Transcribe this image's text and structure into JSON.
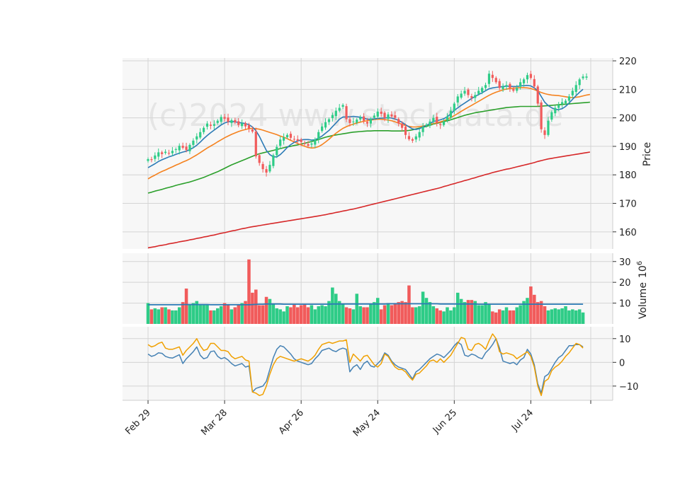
{
  "watermark": "(c)2024 www.stockdata.de",
  "chart_data": {
    "type": "candlestick-with-volume-and-oscillator",
    "x_ticks": [
      "Feb 29",
      "Mar 28",
      "Apr 26",
      "May 24",
      "Jun 25",
      "Jul 24"
    ],
    "colors": {
      "up": "#2ecc87",
      "down": "#f15b5b",
      "ma_blue": "#2c7bb6",
      "ma_orange": "#f5821f",
      "ma_green": "#2ca02c",
      "ma_red": "#d62728",
      "osc_blue": "#4682b4",
      "osc_orange": "#f0a000",
      "volume_ma": "#2c7bb6"
    },
    "price_panel": {
      "ylabel": "Price",
      "ylim": [
        154,
        221
      ],
      "yticks": [
        160,
        170,
        180,
        190,
        200,
        210,
        220
      ],
      "close": [
        185.5,
        185.2,
        186.8,
        187.9,
        187.3,
        188.1,
        187.6,
        188.4,
        189.0,
        190.2,
        189.5,
        188.7,
        190.5,
        192.0,
        193.5,
        195.0,
        196.5,
        198.0,
        197.2,
        197.8,
        199.0,
        200.3,
        199.7,
        198.6,
        199.2,
        198.4,
        197.5,
        198.1,
        197.0,
        196.3,
        195.2,
        186.5,
        184.2,
        182.0,
        180.8,
        183.5,
        186.9,
        189.8,
        192.4,
        193.2,
        194.0,
        193.0,
        192.5,
        192.0,
        191.5,
        190.8,
        190.2,
        191.0,
        192.5,
        195.0,
        197.0,
        198.5,
        199.5,
        201.0,
        202.5,
        203.5,
        204.5,
        199.5,
        198.2,
        198.7,
        199.4,
        200.1,
        199.0,
        198.0,
        199.6,
        200.8,
        202.2,
        201.4,
        200.0,
        201.2,
        200.5,
        200.0,
        198.0,
        196.5,
        194.0,
        192.5,
        192.0,
        193.5,
        195.0,
        196.8,
        197.6,
        198.7,
        200.0,
        198.2,
        197.5,
        198.8,
        200.5,
        202.5,
        205.0,
        207.5,
        208.5,
        209.5,
        208.0,
        207.0,
        208.0,
        209.5,
        210.5,
        211.5,
        215.5,
        214.0,
        212.5,
        210.5,
        211.0,
        211.5,
        210.5,
        209.5,
        210.5,
        212.5,
        213.5,
        215.0,
        214.0,
        211.0,
        205.0,
        196.0,
        194.0,
        199.0,
        202.0,
        203.5,
        204.5,
        205.5,
        206.0,
        207.5,
        209.5,
        211.5,
        213.5,
        214.5,
        214.5
      ],
      "ma_short": [
        182.5,
        183.2,
        183.9,
        184.7,
        185.3,
        185.8,
        186.3,
        186.7,
        187.2,
        187.6,
        188.0,
        188.3,
        188.9,
        189.5,
        190.4,
        191.5,
        192.7,
        193.8,
        194.8,
        195.7,
        196.6,
        197.5,
        198.2,
        198.6,
        198.8,
        198.6,
        198.4,
        198.2,
        198.0,
        197.6,
        196.8,
        195.5,
        193.5,
        191.0,
        188.6,
        187.1,
        186.3,
        186.3,
        187.1,
        188.3,
        189.6,
        190.6,
        191.4,
        191.9,
        192.3,
        192.4,
        192.4,
        192.2,
        192.3,
        192.9,
        193.6,
        194.6,
        195.6,
        196.9,
        198.2,
        199.5,
        200.3,
        200.3,
        200.4,
        200.5,
        200.4,
        200.2,
        199.9,
        199.5,
        199.5,
        199.6,
        199.8,
        199.9,
        199.9,
        200.1,
        199.9,
        199.6,
        199.1,
        198.4,
        197.6,
        196.8,
        196.1,
        195.9,
        196.2,
        196.8,
        197.3,
        198.0,
        198.7,
        199.0,
        199.3,
        199.7,
        200.4,
        201.4,
        202.6,
        203.5,
        204.4,
        205.2,
        206.0,
        206.8,
        207.5,
        208.2,
        208.8,
        209.5,
        210.2,
        210.5,
        210.7,
        210.8,
        211.0,
        211.1,
        211.1,
        211.0,
        211.0,
        211.2,
        211.3,
        211.4,
        211.2,
        210.5,
        209.5,
        207.5,
        205.5,
        204.3,
        203.5,
        203.0,
        202.9,
        203.2,
        204.0,
        205.2,
        206.5,
        207.8,
        209.0,
        210.0
      ],
      "ma_mid": [
        178.6,
        179.3,
        179.9,
        180.6,
        181.2,
        181.7,
        182.3,
        182.8,
        183.4,
        183.9,
        184.5,
        185.0,
        185.6,
        186.3,
        187.0,
        187.8,
        188.6,
        189.4,
        190.1,
        190.8,
        191.6,
        192.3,
        193.0,
        193.6,
        194.2,
        194.7,
        195.2,
        195.6,
        195.9,
        196.2,
        196.3,
        196.2,
        196.0,
        195.7,
        195.3,
        194.9,
        194.5,
        194.1,
        193.6,
        193.2,
        192.7,
        192.1,
        191.6,
        191.0,
        190.5,
        190.0,
        189.6,
        189.4,
        189.5,
        189.9,
        190.6,
        191.5,
        192.5,
        193.6,
        194.6,
        195.5,
        196.3,
        196.9,
        197.4,
        197.8,
        198.2,
        198.5,
        198.8,
        199.0,
        199.2,
        199.4,
        199.5,
        199.5,
        199.4,
        199.2,
        199.0,
        198.6,
        198.2,
        197.7,
        197.3,
        197.0,
        196.8,
        196.8,
        196.9,
        197.1,
        197.4,
        197.7,
        198.0,
        198.3,
        198.6,
        199.0,
        199.5,
        200.1,
        200.8,
        201.5,
        202.3,
        203.0,
        203.7,
        204.4,
        205.1,
        205.8,
        206.5,
        207.2,
        207.9,
        208.5,
        209.0,
        209.4,
        209.8,
        210.1,
        210.3,
        210.4,
        210.5,
        210.6,
        210.6,
        210.5,
        210.3,
        209.9,
        209.4,
        208.9,
        208.5,
        208.2,
        208.0,
        207.9,
        207.8,
        207.6,
        207.4,
        207.2,
        207.1,
        207.2,
        207.4,
        207.7,
        208.0,
        208.2
      ],
      "ma_long": [
        173.6,
        173.9,
        174.3,
        174.6,
        174.9,
        175.3,
        175.6,
        175.9,
        176.3,
        176.6,
        176.9,
        177.2,
        177.5,
        177.9,
        178.3,
        178.7,
        179.1,
        179.6,
        180.1,
        180.6,
        181.1,
        181.7,
        182.3,
        182.9,
        183.5,
        184.0,
        184.5,
        185.0,
        185.5,
        186.0,
        186.5,
        187.0,
        187.4,
        187.7,
        188.0,
        188.3,
        188.6,
        188.9,
        189.2,
        189.5,
        189.8,
        190.0,
        190.3,
        190.5,
        190.8,
        191.1,
        191.4,
        191.7,
        192.0,
        192.4,
        192.8,
        193.2,
        193.5,
        193.8,
        194.0,
        194.2,
        194.4,
        194.6,
        194.8,
        195.0,
        195.1,
        195.2,
        195.3,
        195.4,
        195.4,
        195.5,
        195.5,
        195.5,
        195.5,
        195.5,
        195.4,
        195.4,
        195.4,
        195.4,
        195.5,
        195.6,
        195.8,
        196.1,
        196.4,
        196.7,
        197.0,
        197.4,
        197.8,
        198.1,
        198.4,
        198.7,
        199.0,
        199.3,
        199.7,
        200.1,
        200.5,
        200.9,
        201.2,
        201.5,
        201.8,
        202.0,
        202.2,
        202.4,
        202.6,
        202.8,
        203.0,
        203.2,
        203.4,
        203.6,
        203.7,
        203.8,
        203.9,
        204.0,
        204.0,
        204.0,
        204.0,
        204.0,
        204.0,
        204.1,
        204.2,
        204.3,
        204.4,
        204.5,
        204.6,
        204.7,
        204.8,
        204.9,
        205.0,
        205.1,
        205.2,
        205.3,
        205.4,
        205.5
      ],
      "ma_200": [
        154.4,
        154.6,
        154.8,
        155.1,
        155.3,
        155.5,
        155.8,
        156.0,
        156.2,
        156.5,
        156.7,
        156.9,
        157.2,
        157.4,
        157.7,
        157.9,
        158.2,
        158.4,
        158.7,
        158.9,
        159.2,
        159.5,
        159.7,
        160.0,
        160.3,
        160.5,
        160.8,
        161.1,
        161.3,
        161.6,
        161.8,
        162.0,
        162.2,
        162.4,
        162.6,
        162.8,
        163.0,
        163.2,
        163.4,
        163.6,
        163.8,
        164.0,
        164.2,
        164.4,
        164.6,
        164.8,
        165.0,
        165.2,
        165.4,
        165.6,
        165.8,
        166.0,
        166.3,
        166.5,
        166.8,
        167.0,
        167.3,
        167.5,
        167.8,
        168.0,
        168.3,
        168.6,
        168.9,
        169.2,
        169.5,
        169.8,
        170.1,
        170.4,
        170.7,
        171.0,
        171.3,
        171.6,
        171.9,
        172.2,
        172.5,
        172.8,
        173.1,
        173.4,
        173.7,
        174.0,
        174.3,
        174.6,
        174.9,
        175.2,
        175.5,
        175.9,
        176.2,
        176.6,
        176.9,
        177.3,
        177.6,
        178.0,
        178.3,
        178.7,
        179.0,
        179.4,
        179.7,
        180.1,
        180.4,
        180.8,
        181.1,
        181.4,
        181.7,
        182.0,
        182.2,
        182.5,
        182.8,
        183.1,
        183.4,
        183.7,
        184.0,
        184.3,
        184.7,
        185.0,
        185.3,
        185.6,
        185.8,
        186.0,
        186.2,
        186.4,
        186.6,
        186.8,
        187.0,
        187.2,
        187.4,
        187.6,
        187.8,
        188.0
      ]
    },
    "volume_panel": {
      "ylabel": "Volume",
      "unit": "10^6",
      "ylim": [
        0,
        34
      ],
      "yticks": [
        10,
        20,
        30
      ],
      "values": [
        10,
        7,
        7.5,
        7,
        8,
        8,
        7,
        6.5,
        6.5,
        8,
        10.5,
        17,
        9.5,
        10,
        11,
        9,
        9,
        9.5,
        6.5,
        6.5,
        7.5,
        8.5,
        10,
        9.5,
        7,
        8,
        9.5,
        10,
        11,
        31,
        15,
        16.5,
        9,
        9,
        13,
        12,
        9.5,
        7.5,
        7,
        6,
        8.5,
        8,
        9.5,
        8,
        9,
        9.5,
        8,
        9,
        7,
        8.5,
        9,
        8.5,
        11,
        17.5,
        14.5,
        11,
        9.5,
        8,
        7.5,
        7,
        14.5,
        8.5,
        8,
        8,
        9.5,
        10.5,
        12.5,
        7,
        9,
        10,
        9,
        10,
        10.5,
        11,
        10.5,
        18.5,
        8,
        8,
        8.5,
        15.5,
        12.5,
        10.5,
        8.5,
        7.5,
        6.5,
        6,
        8,
        6.5,
        8,
        15,
        12,
        10.5,
        11.5,
        11.5,
        11,
        9,
        9,
        10.5,
        9.5,
        6,
        5.5,
        7,
        6.5,
        8,
        6.5,
        6.5,
        8,
        9,
        11,
        12.5,
        18,
        14,
        10.5,
        11,
        8.5,
        6.5,
        7,
        7.5,
        7,
        7.5,
        8.5,
        6.5,
        7,
        6.5,
        7,
        5.5
      ],
      "ma": [
        9.2,
        9.2,
        9.2,
        9.2,
        9.2,
        9.2,
        9.2,
        9.2,
        9.2,
        9.2,
        9.3,
        9.3,
        9.3,
        9.3,
        9.3,
        9.3,
        9.3,
        9.3,
        9.2,
        9.2,
        9.2,
        9.2,
        9.2,
        9.2,
        9.2,
        9.2,
        9.2,
        9.2,
        9.2,
        9.2,
        9.3,
        9.4,
        9.5,
        9.5,
        9.6,
        9.6,
        9.6,
        9.6,
        9.6,
        9.5,
        9.5,
        9.5,
        9.5,
        9.5,
        9.5,
        9.5,
        9.5,
        9.5,
        9.5,
        9.5,
        9.5,
        9.5,
        9.5,
        9.6,
        9.6,
        9.6,
        9.6,
        9.6,
        9.6,
        9.6,
        9.6,
        9.6,
        9.6,
        9.6,
        9.6,
        9.6,
        9.6,
        9.6,
        9.6,
        9.7,
        9.7,
        9.7,
        9.7,
        9.7,
        9.7,
        9.7,
        9.7,
        9.7,
        9.7,
        9.7,
        9.7,
        9.7,
        9.7,
        9.7,
        9.6,
        9.6,
        9.6,
        9.6,
        9.6,
        9.6,
        9.6,
        9.6,
        9.6,
        9.6,
        9.6,
        9.5,
        9.5,
        9.5,
        9.5,
        9.5,
        9.5,
        9.5,
        9.5,
        9.5,
        9.5,
        9.5,
        9.5,
        9.5,
        9.5,
        9.5,
        9.5,
        9.5,
        9.5,
        9.5,
        9.5,
        9.5,
        9.5,
        9.5,
        9.5,
        9.5,
        9.5,
        9.5,
        9.5,
        9.5,
        9.5,
        9.5
      ]
    },
    "oscillator_panel": {
      "ylim": [
        -16,
        15
      ],
      "yticks": [
        -10,
        0,
        10
      ],
      "blue": [
        3.5,
        2.5,
        3,
        4,
        3.8,
        2.5,
        2,
        1.8,
        2.5,
        3.2,
        -0.5,
        1.5,
        3,
        4.5,
        6.5,
        3,
        1.5,
        2,
        4.5,
        4.8,
        2.5,
        1.5,
        2,
        1,
        -0.5,
        -1.5,
        -1,
        -0.5,
        -2,
        -1.5,
        -12.5,
        -11,
        -10.5,
        -10,
        -8,
        -3,
        2,
        5.5,
        7,
        6.5,
        5,
        3.5,
        1.5,
        0.5,
        0,
        -0.5,
        -1,
        -0.5,
        1.5,
        3,
        5,
        5.5,
        6,
        5,
        4.5,
        5.5,
        6,
        5.5,
        -4,
        -2,
        -1,
        -3,
        -0.5,
        0.5,
        -1.5,
        -2,
        -0.5,
        1,
        4,
        3,
        0.5,
        -1,
        -2,
        -2.5,
        -3,
        -5,
        -7,
        -4,
        -3,
        -1.5,
        0,
        1.5,
        2.5,
        3.5,
        3,
        2,
        3.5,
        5,
        7,
        8.5,
        7.5,
        3,
        2.5,
        3.5,
        3,
        2,
        1.5,
        4,
        5.5,
        7.5,
        10,
        6,
        0.5,
        0,
        -0.5,
        0,
        -1,
        1,
        2,
        5.5,
        3.5,
        -1,
        -9,
        -13,
        -6,
        -5,
        -2.5,
        0,
        2,
        3,
        5,
        7,
        7,
        7.5,
        7.5,
        6.5
      ],
      "orange": [
        7.5,
        6.5,
        7,
        8,
        8.5,
        6,
        5.5,
        5.5,
        6,
        6.5,
        3,
        5,
        6.5,
        8,
        10,
        7,
        5,
        5.5,
        8,
        8,
        6.5,
        5,
        5,
        4.5,
        2.5,
        1.5,
        2,
        2.5,
        1,
        0.5,
        -12.5,
        -13,
        -14,
        -13.5,
        -10,
        -5,
        -1,
        1.5,
        2.5,
        2,
        1.5,
        1,
        0.5,
        1,
        1.5,
        1,
        0.5,
        1.5,
        3,
        5.5,
        7.5,
        8,
        8.5,
        8,
        8.5,
        9,
        9,
        9.5,
        0,
        3.5,
        2,
        0.5,
        2.5,
        3,
        1,
        -1,
        -2,
        -0.5,
        3.5,
        2.5,
        0,
        -2,
        -3,
        -3,
        -4,
        -6,
        -7.5,
        -5,
        -4.5,
        -3,
        -1.5,
        0.5,
        1,
        0,
        1.5,
        0,
        1.5,
        3,
        5.5,
        8,
        10.5,
        10,
        5.5,
        5,
        7.5,
        8,
        7,
        5.5,
        9,
        12,
        10,
        4.5,
        3.5,
        4,
        3.5,
        3,
        1.5,
        2.5,
        3.5,
        4.5,
        2.5,
        -2,
        -10,
        -14,
        -8,
        -7,
        -3.5,
        -2,
        -1,
        0.5,
        2.5,
        4,
        6,
        8,
        7.5,
        6
      ]
    }
  }
}
